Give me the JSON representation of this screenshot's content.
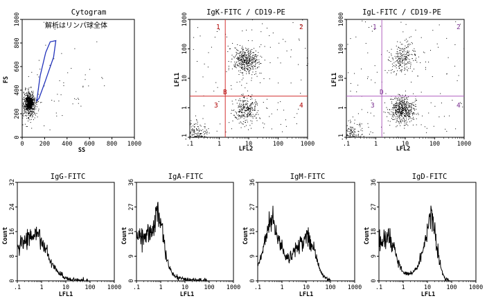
{
  "figure": {
    "background": "#ffffff"
  },
  "chart_data": [
    {
      "id": "cytogram",
      "type": "scatter",
      "title": "Cytogram",
      "xlabel": "SS",
      "ylabel": "FS",
      "xlim": [
        0,
        1000
      ],
      "ylim": [
        0,
        1000
      ],
      "x_tick_labels": [
        "0",
        "200",
        "400",
        "600",
        "800",
        "1000"
      ],
      "y_tick_labels": [
        "0",
        "200",
        "400",
        "600",
        "800",
        "1000"
      ],
      "annotation": "解析はリンパ球全体",
      "gate": {
        "shape": "freehand-ellipse",
        "color": "#2233bb",
        "polygon": [
          [
            130,
            310
          ],
          [
            160,
            520
          ],
          [
            210,
            720
          ],
          [
            250,
            810
          ],
          [
            300,
            820
          ],
          [
            280,
            680
          ],
          [
            200,
            460
          ],
          [
            150,
            330
          ],
          [
            130,
            310
          ]
        ]
      },
      "populations": [
        {
          "label": "lymphocytes",
          "center": [
            60,
            280
          ],
          "spread": [
            30,
            60
          ],
          "relative_density": 1.0
        },
        {
          "label": "scattered",
          "center": [
            250,
            450
          ],
          "spread": [
            300,
            250
          ],
          "relative_density": 0.2
        }
      ]
    },
    {
      "id": "igk-cd19",
      "type": "scatter",
      "title": "IgK-FITC / CD19-PE",
      "xlabel": "LFL2",
      "ylabel": "LFL1",
      "scale": "log",
      "xlim": [
        0.1,
        1000
      ],
      "ylim": [
        0.1,
        1000
      ],
      "x_tick_labels": [
        ".1",
        "1",
        "10",
        "100",
        "1000"
      ],
      "y_tick_labels": [
        ".1",
        "1",
        "10",
        "100",
        "1000"
      ],
      "quadrant_color": "#d33030",
      "quadrant_x": 1.6,
      "quadrant_y": 2.5,
      "quadrant_label_color": "#b00000",
      "quadrant_labels": [
        "1",
        "2",
        "3",
        "4"
      ],
      "gate_label": "B",
      "populations": [
        {
          "label": "upper-right",
          "center": [
            8,
            40
          ],
          "relative_density": 0.45
        },
        {
          "label": "lower-right",
          "center": [
            8,
            0.9
          ],
          "relative_density": 0.3
        },
        {
          "label": "lower-left",
          "center": [
            0.15,
            0.12
          ],
          "relative_density": 0.25
        }
      ]
    },
    {
      "id": "igl-cd19",
      "type": "scatter",
      "title": "IgL-FITC / CD19-PE",
      "xlabel": "LFL2",
      "ylabel": "LFL1",
      "scale": "log",
      "xlim": [
        0.1,
        1000
      ],
      "ylim": [
        0.1,
        1000
      ],
      "x_tick_labels": [
        ".1",
        "1",
        "10",
        "100",
        "1000"
      ],
      "y_tick_labels": [
        ".1",
        "1",
        "10",
        "100",
        "1000"
      ],
      "quadrant_color": "#b060c0",
      "quadrant_x": 1.6,
      "quadrant_y": 2.5,
      "quadrant_label_color": "#7a3090",
      "quadrant_labels": [
        "1",
        "2",
        "3",
        "4"
      ],
      "gate_label": "D",
      "populations": [
        {
          "label": "upper-right",
          "center": [
            8,
            50
          ],
          "relative_density": 0.25
        },
        {
          "label": "lower-right",
          "center": [
            8,
            0.9
          ],
          "relative_density": 0.55
        },
        {
          "label": "lower-left",
          "center": [
            0.15,
            0.12
          ],
          "relative_density": 0.2
        }
      ]
    },
    {
      "id": "igg",
      "type": "line",
      "title": "IgG-FITC",
      "xlabel": "LFL1",
      "ylabel": "Count",
      "scale_x": "log",
      "xlim": [
        0.1,
        1000
      ],
      "ylim": [
        0,
        32
      ],
      "x_tick_labels": [
        ".1",
        "1",
        "10",
        "100",
        "1000"
      ],
      "y_tick_labels": [
        "0",
        "8",
        "16",
        "24",
        "32"
      ],
      "series": [
        {
          "x": [
            0.1,
            0.15,
            0.2,
            0.3,
            0.5,
            0.7,
            1,
            1.5,
            2,
            3,
            5,
            8,
            12,
            20,
            40,
            80
          ],
          "y": [
            10,
            12.5,
            13.5,
            14,
            14.8,
            15.5,
            13.5,
            10,
            7.5,
            5,
            2.5,
            1.5,
            0.8,
            0.4,
            0.2,
            0.1
          ]
        }
      ]
    },
    {
      "id": "iga",
      "type": "line",
      "title": "IgA-FITC",
      "xlabel": "LFL1",
      "ylabel": "Count",
      "scale_x": "log",
      "xlim": [
        0.1,
        1000
      ],
      "ylim": [
        0,
        36
      ],
      "x_tick_labels": [
        ".1",
        "1",
        "10",
        "100",
        "1000"
      ],
      "y_tick_labels": [
        "0",
        "9",
        "18",
        "27",
        "36"
      ],
      "series": [
        {
          "x": [
            0.1,
            0.2,
            0.3,
            0.5,
            0.7,
            0.9,
            1.2,
            1.6,
            2.2,
            3.5,
            6,
            12,
            30,
            80
          ],
          "y": [
            16,
            16.5,
            17,
            19,
            24,
            23,
            17,
            10,
            5,
            2,
            0.8,
            0.4,
            0.2,
            0.1
          ]
        }
      ]
    },
    {
      "id": "igm",
      "type": "line",
      "title": "IgM-FITC",
      "xlabel": "LFL1",
      "ylabel": "Count",
      "scale_x": "log",
      "xlim": [
        0.1,
        1000
      ],
      "ylim": [
        0,
        36
      ],
      "x_tick_labels": [
        ".1",
        "1",
        "10",
        "100",
        "1000"
      ],
      "y_tick_labels": [
        "0",
        "9",
        "18",
        "27",
        "36"
      ],
      "series": [
        {
          "x": [
            0.1,
            0.15,
            0.25,
            0.35,
            0.5,
            0.8,
            1.2,
            2,
            3,
            5,
            8,
            12,
            18,
            25,
            40,
            70,
            100
          ],
          "y": [
            6,
            10,
            19,
            23,
            20,
            14,
            10,
            9,
            10.5,
            13,
            15,
            15.5,
            13,
            9,
            3,
            0.5,
            0.2
          ]
        }
      ]
    },
    {
      "id": "igd",
      "type": "line",
      "title": "IgD-FITC",
      "xlabel": "LFL1",
      "ylabel": "Count",
      "scale_x": "log",
      "xlim": [
        0.1,
        1000
      ],
      "ylim": [
        0,
        36
      ],
      "x_tick_labels": [
        ".1",
        "1",
        "10",
        "100",
        "1000"
      ],
      "y_tick_labels": [
        "0",
        "9",
        "18",
        "27",
        "36"
      ],
      "series": [
        {
          "x": [
            0.1,
            0.15,
            0.25,
            0.4,
            0.6,
            1,
            1.5,
            2.5,
            4,
            6,
            9,
            13,
            18,
            25,
            35,
            50,
            80
          ],
          "y": [
            14,
            15,
            15.5,
            12,
            7,
            3,
            2.5,
            3,
            5,
            10,
            16,
            24,
            21,
            12,
            5,
            1,
            0.3
          ]
        }
      ]
    }
  ]
}
